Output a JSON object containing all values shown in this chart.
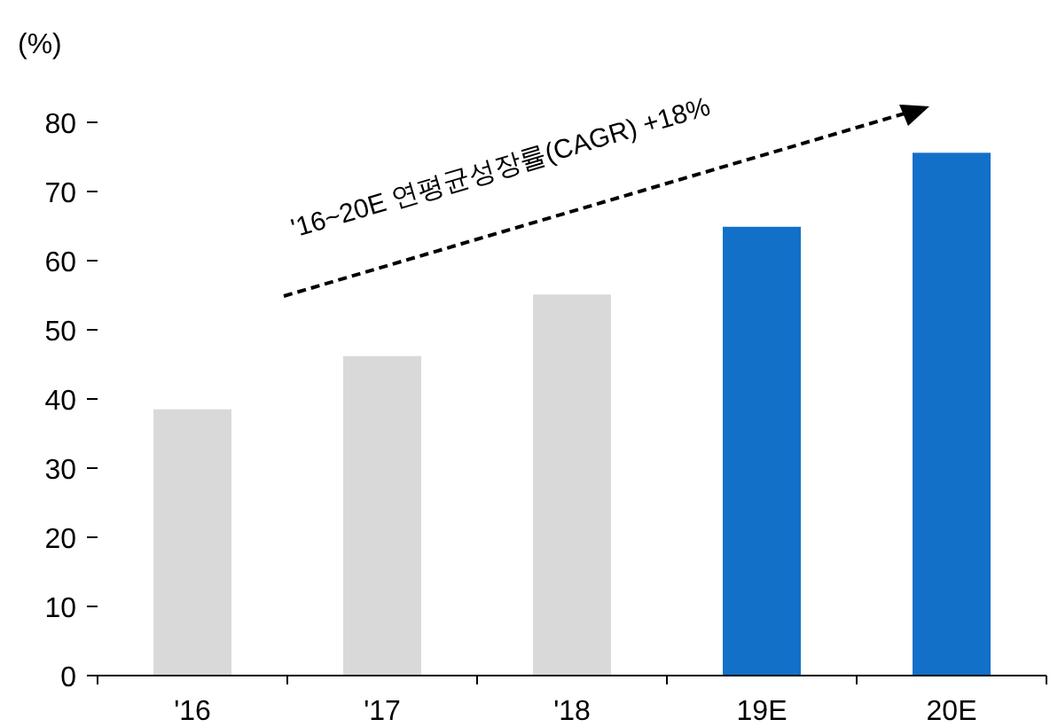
{
  "chart_data": {
    "type": "bar",
    "ylabel": "(%)",
    "categories": [
      "'16",
      "'17",
      "'18",
      "19E",
      "20E"
    ],
    "values": [
      38.5,
      46.2,
      55.1,
      64.9,
      75.6
    ],
    "colors": [
      "#d9d9d9",
      "#d9d9d9",
      "#d9d9d9",
      "#1270c9",
      "#1270c9"
    ],
    "ylim": [
      0,
      80
    ],
    "yticks": [
      0,
      10,
      20,
      30,
      40,
      50,
      60,
      70,
      80
    ],
    "annotations": [
      "'16~20E 연평균성장률(CAGR) +18%"
    ]
  }
}
